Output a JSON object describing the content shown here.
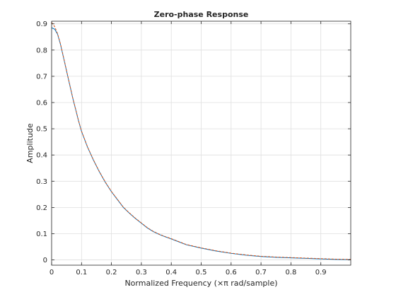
{
  "chart_data": {
    "type": "line",
    "title": "Zero-phase Response",
    "xlabel": "Normalized Frequency (×π rad/sample)",
    "ylabel": "Amplitude",
    "xlim": [
      0,
      1
    ],
    "ylim": [
      -0.02,
      0.91
    ],
    "xticks": [
      0,
      0.1,
      0.2,
      0.3,
      0.4,
      0.5,
      0.6,
      0.7,
      0.8,
      0.9
    ],
    "xtick_labels": [
      "0",
      "0.1",
      "0.2",
      "0.3",
      "0.4",
      "0.5",
      "0.6",
      "0.7",
      "0.8",
      "0.9"
    ],
    "yticks": [
      0,
      0.1,
      0.2,
      0.3,
      0.4,
      0.5,
      0.6,
      0.7,
      0.8,
      0.9
    ],
    "ytick_labels": [
      "0",
      "0.1",
      "0.2",
      "0.3",
      "0.4",
      "0.5",
      "0.6",
      "0.7",
      "0.8",
      "0.9"
    ],
    "grid": true,
    "legend": "none",
    "series": [
      {
        "color": "#0072bd",
        "x": [
          0,
          0.01,
          0.02,
          0.03,
          0.04,
          0.05,
          0.06,
          0.07,
          0.08,
          0.09,
          0.1,
          0.12,
          0.14,
          0.16,
          0.18,
          0.2,
          0.22,
          0.24,
          0.26,
          0.28,
          0.3,
          0.32,
          0.34,
          0.36,
          0.38,
          0.4,
          0.45,
          0.5,
          0.55,
          0.6,
          0.65,
          0.7,
          0.75,
          0.8,
          0.85,
          0.9,
          0.95,
          1.0
        ],
        "y": [
          0.885,
          0.88,
          0.86,
          0.82,
          0.77,
          0.72,
          0.67,
          0.62,
          0.575,
          0.53,
          0.49,
          0.43,
          0.38,
          0.335,
          0.295,
          0.26,
          0.23,
          0.2,
          0.178,
          0.158,
          0.14,
          0.122,
          0.108,
          0.097,
          0.088,
          0.08,
          0.058,
          0.045,
          0.034,
          0.025,
          0.018,
          0.013,
          0.01,
          0.008,
          0.006,
          0.004,
          0.002,
          0.001
        ]
      },
      {
        "color": "#d95319",
        "style": "dashed",
        "x": [
          0,
          0.01,
          0.02,
          0.03,
          0.04,
          0.05,
          0.06,
          0.07,
          0.08,
          0.09,
          0.1,
          0.12,
          0.14,
          0.16,
          0.18,
          0.2,
          0.22,
          0.24,
          0.26,
          0.28,
          0.3,
          0.32,
          0.34,
          0.36,
          0.38,
          0.4,
          0.45,
          0.5,
          0.55,
          0.6,
          0.65,
          0.7,
          0.75,
          0.8,
          0.85,
          0.9,
          0.95,
          1.0
        ],
        "y": [
          0.905,
          0.89,
          0.862,
          0.822,
          0.772,
          0.721,
          0.671,
          0.621,
          0.576,
          0.531,
          0.491,
          0.431,
          0.381,
          0.336,
          0.296,
          0.261,
          0.231,
          0.201,
          0.179,
          0.159,
          0.141,
          0.123,
          0.109,
          0.098,
          0.089,
          0.081,
          0.059,
          0.046,
          0.035,
          0.026,
          0.019,
          0.014,
          0.011,
          0.009,
          0.007,
          0.005,
          0.003,
          0.002
        ]
      }
    ]
  }
}
